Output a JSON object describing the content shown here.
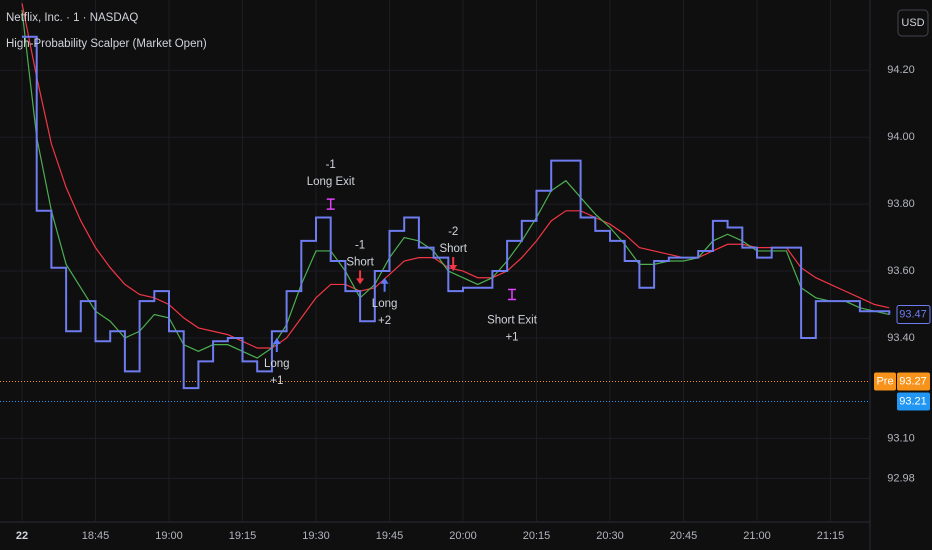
{
  "chart_data": {
    "type": "line",
    "symbol": "Netflix, Inc. · 1 · NASDAQ",
    "indicator": "High-Probability Scalper (Market Open)",
    "currency": "USD",
    "step": true,
    "x": [
      "18:30",
      "18:33",
      "18:36",
      "18:39",
      "18:42",
      "18:45",
      "18:48",
      "18:51",
      "18:54",
      "18:57",
      "19:00",
      "19:03",
      "19:06",
      "19:09",
      "19:12",
      "19:15",
      "19:18",
      "19:21",
      "19:24",
      "19:27",
      "19:30",
      "19:33",
      "19:36",
      "19:39",
      "19:42",
      "19:45",
      "19:48",
      "19:51",
      "19:54",
      "19:57",
      "20:00",
      "20:03",
      "20:06",
      "20:09",
      "20:12",
      "20:15",
      "20:18",
      "20:21",
      "20:24",
      "20:27",
      "20:30",
      "20:33",
      "20:36",
      "20:39",
      "20:42",
      "20:45",
      "20:48",
      "20:51",
      "20:54",
      "20:57",
      "21:00",
      "21:03",
      "21:06",
      "21:09",
      "21:12",
      "21:15",
      "21:18",
      "21:21",
      "21:24",
      "21:27"
    ],
    "series": [
      {
        "color": "#6e7cf0",
        "values": [
          94.3,
          93.78,
          93.61,
          93.42,
          93.51,
          93.39,
          93.42,
          93.3,
          93.51,
          93.54,
          93.42,
          93.25,
          93.33,
          93.39,
          93.4,
          93.33,
          93.3,
          93.42,
          93.54,
          93.69,
          93.76,
          93.63,
          93.54,
          93.45,
          93.6,
          93.72,
          93.76,
          93.67,
          93.64,
          93.54,
          93.55,
          93.55,
          93.6,
          93.69,
          93.75,
          93.84,
          93.93,
          93.93,
          93.76,
          93.72,
          93.69,
          93.63,
          93.55,
          93.63,
          93.64,
          93.64,
          93.66,
          93.75,
          93.73,
          93.67,
          93.64,
          93.67,
          93.67,
          93.4,
          93.51,
          93.51,
          93.51,
          93.48,
          93.48,
          93.47
        ]
      },
      {
        "color": "#4caf50",
        "values": [
          94.38,
          94.0,
          93.78,
          93.62,
          93.55,
          93.48,
          93.45,
          93.4,
          93.42,
          93.47,
          93.46,
          93.38,
          93.36,
          93.38,
          93.38,
          93.36,
          93.34,
          93.37,
          93.44,
          93.56,
          93.66,
          93.66,
          93.6,
          93.52,
          93.56,
          93.64,
          93.7,
          93.69,
          93.66,
          93.6,
          93.58,
          93.56,
          93.58,
          93.63,
          93.69,
          93.76,
          93.84,
          93.87,
          93.82,
          93.77,
          93.73,
          93.68,
          93.62,
          93.62,
          93.63,
          93.63,
          93.64,
          93.69,
          93.71,
          93.69,
          93.66,
          93.66,
          93.66,
          93.55,
          93.52,
          93.51,
          93.51,
          93.49,
          93.48,
          93.47
        ]
      },
      {
        "color": "#f23645",
        "values": [
          94.4,
          94.18,
          93.98,
          93.85,
          93.75,
          93.67,
          93.61,
          93.56,
          93.53,
          93.52,
          93.5,
          93.46,
          93.43,
          93.42,
          93.41,
          93.39,
          93.37,
          93.37,
          93.4,
          93.46,
          93.52,
          93.56,
          93.56,
          93.54,
          93.55,
          93.59,
          93.63,
          93.64,
          93.64,
          93.61,
          93.6,
          93.58,
          93.58,
          93.6,
          93.64,
          93.69,
          93.75,
          93.78,
          93.78,
          93.76,
          93.74,
          93.71,
          93.67,
          93.66,
          93.65,
          93.64,
          93.64,
          93.66,
          93.68,
          93.68,
          93.67,
          93.67,
          93.67,
          93.61,
          93.58,
          93.56,
          93.54,
          93.52,
          93.5,
          93.49
        ]
      }
    ],
    "ylim": [
      92.85,
      94.41
    ],
    "yticks": [
      {
        "value": 94.2,
        "label": "94.20"
      },
      {
        "value": 94.0,
        "label": "94.00"
      },
      {
        "value": 93.8,
        "label": "93.80"
      },
      {
        "value": 93.6,
        "label": "93.60"
      },
      {
        "value": 93.4,
        "label": "93.40"
      },
      {
        "value": 93.1,
        "label": "93.10"
      },
      92.98
    ],
    "xticks": [
      {
        "value": "18:30",
        "label": "22"
      },
      "18:45",
      "19:00",
      "19:15",
      "19:30",
      "19:45",
      "20:00",
      "20:15",
      "20:30",
      "20:45",
      "21:00",
      "21:15"
    ],
    "annotations": [
      {
        "x": "19:22",
        "y": 93.4,
        "kind": "long",
        "lines": [
          "Long",
          "+1"
        ]
      },
      {
        "x": "19:33",
        "y": 93.8,
        "kind": "exit",
        "lines": [
          "-1",
          "Long Exit"
        ]
      },
      {
        "x": "19:39",
        "y": 93.56,
        "kind": "short",
        "lines": [
          "-1",
          "Short"
        ]
      },
      {
        "x": "19:44",
        "y": 93.58,
        "kind": "long",
        "lines": [
          "Long",
          "+2"
        ]
      },
      {
        "x": "19:58",
        "y": 93.6,
        "kind": "short",
        "lines": [
          "-2",
          "Short"
        ]
      },
      {
        "x": "20:10",
        "y": 93.53,
        "kind": "exit",
        "lines": [
          "Short Exit",
          "+1"
        ]
      }
    ],
    "price_lines": [
      {
        "label": "Pre",
        "value": 93.27,
        "color": "#f7931a"
      },
      {
        "value": 93.21,
        "color": "#2196f3"
      }
    ]
  }
}
